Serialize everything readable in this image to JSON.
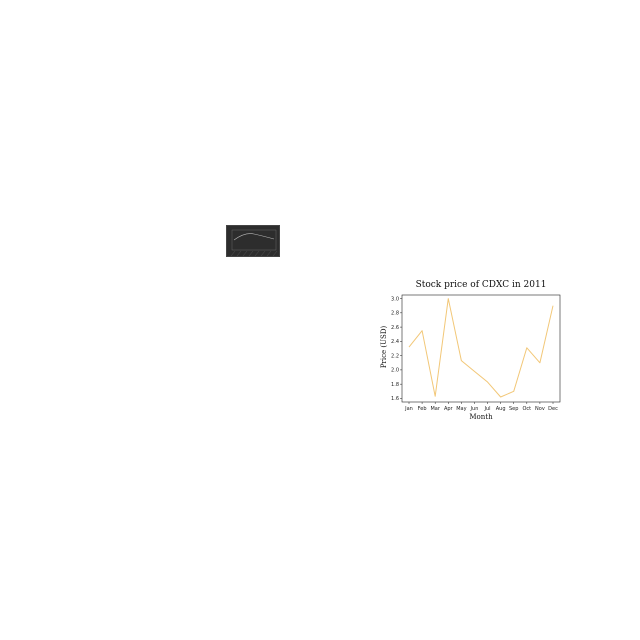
{
  "colors": {
    "background": "#ffffff",
    "line": "#f2c777",
    "axes": "#222222",
    "thumbnail_bg": "#2d2d2d",
    "thumbnail_line": "#bbbbbb"
  },
  "thumbnail": {
    "description_icon": "dark-chart-thumbnail-icon"
  },
  "chart_data": {
    "type": "line",
    "title": "Stock price of CDXC in 2011",
    "xlabel": "Month",
    "ylabel": "Price (USD)",
    "categories": [
      "Jan",
      "Feb",
      "Mar",
      "Apr",
      "May",
      "Jun",
      "Jul",
      "Aug",
      "Sep",
      "Oct",
      "Nov",
      "Dec"
    ],
    "series": [
      {
        "values": [
          2.32,
          2.55,
          1.63,
          3.0,
          2.13,
          1.98,
          1.83,
          1.62,
          1.7,
          2.31,
          2.1,
          2.9
        ]
      }
    ],
    "ylim": [
      1.55,
      3.05
    ],
    "yticks": [
      "1.6",
      "1.8",
      "2.0",
      "2.2",
      "2.4",
      "2.6",
      "2.8",
      "3.0"
    ],
    "grid": false
  }
}
